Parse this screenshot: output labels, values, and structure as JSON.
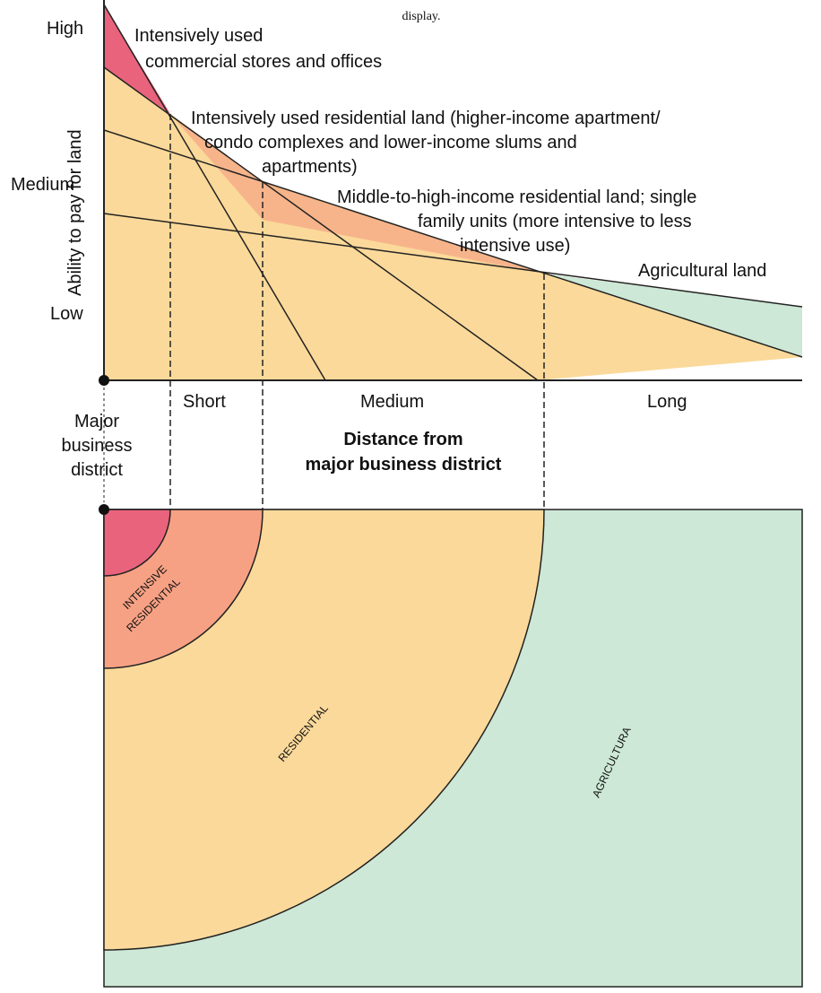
{
  "header": {
    "caption": "display."
  },
  "y_axis": {
    "label": "Ability to pay for land",
    "levels": [
      "High",
      "Medium",
      "Low"
    ]
  },
  "curves": [
    {
      "label_lines": [
        "Intensively used",
        "commercial stores and offices"
      ]
    },
    {
      "label_lines": [
        "Intensively used residential land (higher-income apartment/",
        "condo complexes and lower-income slums and",
        "apartments)"
      ]
    },
    {
      "label_lines": [
        "Middle-to-high-income residential land; single",
        "family units (more intensive to less",
        "intensive use)"
      ]
    },
    {
      "label_lines": [
        "Agricultural land"
      ]
    }
  ],
  "x_axis": {
    "distances": [
      "Short",
      "Medium",
      "Long"
    ],
    "label_lines": [
      "Distance from",
      "major business district"
    ]
  },
  "origin": {
    "label_lines": [
      "Major",
      "business",
      "district"
    ]
  },
  "zones": {
    "intensive": [
      "INTENSIVE",
      "RESIDENTIAL"
    ],
    "residential": "RESIDENTIAL",
    "agricultural": "AGRICULTURA"
  }
}
